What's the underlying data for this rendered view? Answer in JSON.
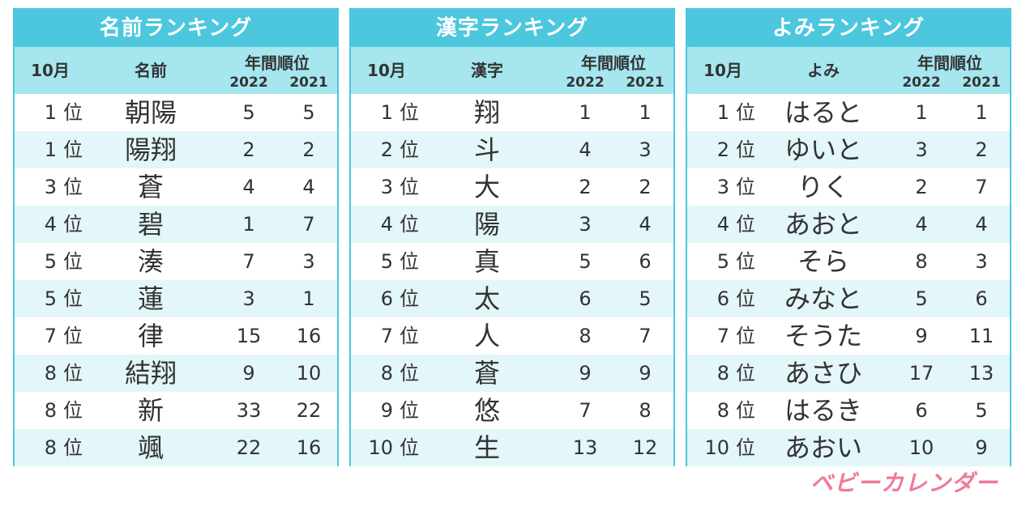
{
  "panels": [
    {
      "title": "名前ランキング",
      "headers": {
        "month": "10月",
        "name": "名前",
        "annual": "年間順位",
        "year1": "2022",
        "year2": "2021"
      },
      "rows": [
        {
          "rank": "1",
          "unit": "位",
          "name": "朝陽",
          "y2022": "5",
          "y2021": "5"
        },
        {
          "rank": "1",
          "unit": "位",
          "name": "陽翔",
          "y2022": "2",
          "y2021": "2"
        },
        {
          "rank": "3",
          "unit": "位",
          "name": "蒼",
          "y2022": "4",
          "y2021": "4"
        },
        {
          "rank": "4",
          "unit": "位",
          "name": "碧",
          "y2022": "1",
          "y2021": "7"
        },
        {
          "rank": "5",
          "unit": "位",
          "name": "湊",
          "y2022": "7",
          "y2021": "3"
        },
        {
          "rank": "5",
          "unit": "位",
          "name": "蓮",
          "y2022": "3",
          "y2021": "1"
        },
        {
          "rank": "7",
          "unit": "位",
          "name": "律",
          "y2022": "15",
          "y2021": "16"
        },
        {
          "rank": "8",
          "unit": "位",
          "name": "結翔",
          "y2022": "9",
          "y2021": "10"
        },
        {
          "rank": "8",
          "unit": "位",
          "name": "新",
          "y2022": "33",
          "y2021": "22"
        },
        {
          "rank": "8",
          "unit": "位",
          "name": "颯",
          "y2022": "22",
          "y2021": "16"
        }
      ]
    },
    {
      "title": "漢字ランキング",
      "headers": {
        "month": "10月",
        "name": "漢字",
        "annual": "年間順位",
        "year1": "2022",
        "year2": "2021"
      },
      "rows": [
        {
          "rank": "1",
          "unit": "位",
          "name": "翔",
          "y2022": "1",
          "y2021": "1"
        },
        {
          "rank": "2",
          "unit": "位",
          "name": "斗",
          "y2022": "4",
          "y2021": "3"
        },
        {
          "rank": "3",
          "unit": "位",
          "name": "大",
          "y2022": "2",
          "y2021": "2"
        },
        {
          "rank": "4",
          "unit": "位",
          "name": "陽",
          "y2022": "3",
          "y2021": "4"
        },
        {
          "rank": "5",
          "unit": "位",
          "name": "真",
          "y2022": "5",
          "y2021": "6"
        },
        {
          "rank": "6",
          "unit": "位",
          "name": "太",
          "y2022": "6",
          "y2021": "5"
        },
        {
          "rank": "7",
          "unit": "位",
          "name": "人",
          "y2022": "8",
          "y2021": "7"
        },
        {
          "rank": "8",
          "unit": "位",
          "name": "蒼",
          "y2022": "9",
          "y2021": "9"
        },
        {
          "rank": "9",
          "unit": "位",
          "name": "悠",
          "y2022": "7",
          "y2021": "8"
        },
        {
          "rank": "10",
          "unit": "位",
          "name": "生",
          "y2022": "13",
          "y2021": "12"
        }
      ]
    },
    {
      "title": "よみランキング",
      "headers": {
        "month": "10月",
        "name": "よみ",
        "annual": "年間順位",
        "year1": "2022",
        "year2": "2021"
      },
      "rows": [
        {
          "rank": "1",
          "unit": "位",
          "name": "はると",
          "y2022": "1",
          "y2021": "1"
        },
        {
          "rank": "2",
          "unit": "位",
          "name": "ゆいと",
          "y2022": "3",
          "y2021": "2"
        },
        {
          "rank": "3",
          "unit": "位",
          "name": "りく",
          "y2022": "2",
          "y2021": "7"
        },
        {
          "rank": "4",
          "unit": "位",
          "name": "あおと",
          "y2022": "4",
          "y2021": "4"
        },
        {
          "rank": "5",
          "unit": "位",
          "name": "そら",
          "y2022": "8",
          "y2021": "3"
        },
        {
          "rank": "6",
          "unit": "位",
          "name": "みなと",
          "y2022": "5",
          "y2021": "6"
        },
        {
          "rank": "7",
          "unit": "位",
          "name": "そうた",
          "y2022": "9",
          "y2021": "11"
        },
        {
          "rank": "8",
          "unit": "位",
          "name": "あさひ",
          "y2022": "17",
          "y2021": "13"
        },
        {
          "rank": "8",
          "unit": "位",
          "name": "はるき",
          "y2022": "6",
          "y2021": "5"
        },
        {
          "rank": "10",
          "unit": "位",
          "name": "あおい",
          "y2022": "10",
          "y2021": "9"
        }
      ]
    }
  ],
  "brand": "ベビーカレンダー",
  "colors": {
    "header": "#4cc7dd",
    "subheader": "#a6e6ef",
    "stripe": "#e3f6f9",
    "brand": "#f07a97"
  }
}
